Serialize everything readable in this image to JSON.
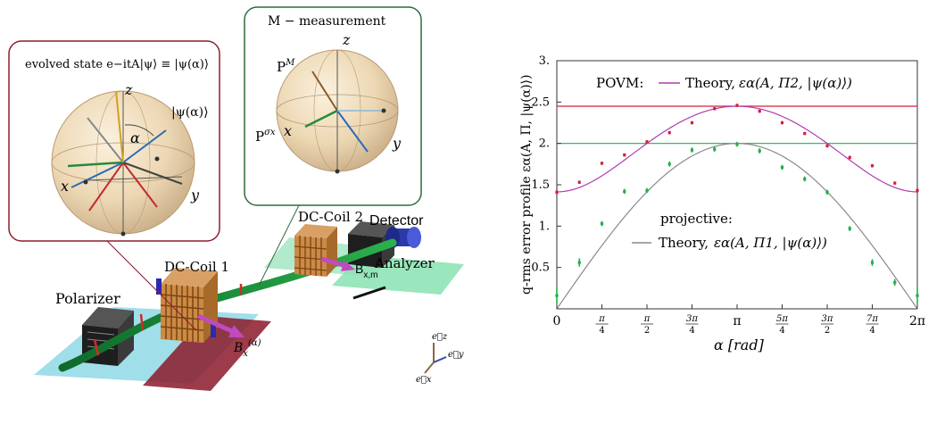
{
  "setup": {
    "inset_left_title": "evolved state e−itA|ψ⟩ ≡ |ψ(α)⟩",
    "inset_right_title": "M − measurement",
    "sphere_left": {
      "z": "z",
      "x": "x",
      "y": "y",
      "alpha": "α",
      "psi": "|ψ(α)⟩"
    },
    "sphere_right": {
      "z": "z",
      "x": "x",
      "y": "y",
      "pm": "P",
      "pm_sup": "M",
      "ps": "P",
      "ps_sup": "σx"
    },
    "polarizer": "Polarizer",
    "coil1": "DC-Coil 1",
    "coil2": "DC-Coil 2",
    "detector": "Detector",
    "analyzer": "Analyzer",
    "field1_main": "B",
    "field1_sub": "x",
    "field1_sup": "(α)",
    "field2_main": "B",
    "field2_sub": "x,m",
    "axis_ez": "e⃗z",
    "axis_ey": "e⃗y",
    "axis_ex": "e⃗x"
  },
  "colors": {
    "red_series": "#d81f3c",
    "green_series": "#1fb14a",
    "theory_pi2": "#b03bb0",
    "theory_pi1": "#8a8a8a",
    "inset_left_border": "#8b1f2e",
    "inset_right_border": "#2e6b3c"
  },
  "chart_data": {
    "type": "line",
    "xlabel": "α [rad]",
    "ylabel": "q-rms error profile εα(A, Π, |ψ(α)⟩)",
    "xlim": [
      0,
      6.2832
    ],
    "ylim": [
      0,
      3.0
    ],
    "x_tick_labels": [
      "0",
      "π/4",
      "π/2",
      "3π/4",
      "π",
      "5π/4",
      "3π/2",
      "7π/4",
      "2π"
    ],
    "y_tick_labels": [
      "0.5",
      "1.",
      "1.5",
      "2.",
      "2.5",
      "3."
    ],
    "y_ticks": [
      0.5,
      1.0,
      1.5,
      2.0,
      2.5,
      3.0
    ],
    "annotations": {
      "povm_label": "POVM:",
      "povm_theory": "Theory,",
      "povm_formula": "εα(A, Π2, |ψ(α)⟩)",
      "proj_label": "projective:",
      "proj_theory": "Theory,",
      "proj_formula": "εα(A, Π1, |ψ(α)⟩)"
    },
    "reference_lines": [
      {
        "name": "red limit",
        "y": 2.45
      },
      {
        "name": "green limit",
        "y": 2.0
      }
    ],
    "series": [
      {
        "name": "POVM theory",
        "kind": "curve",
        "formula": "sqrt(2 + 4 sin^2(alpha/2))",
        "samples": 120
      },
      {
        "name": "projective theory",
        "kind": "curve",
        "formula": "2 sin(alpha/2)",
        "samples": 120
      },
      {
        "name": "POVM data",
        "kind": "points",
        "x": [
          0,
          0.3927,
          0.7854,
          1.1781,
          1.5708,
          1.9635,
          2.3562,
          2.7489,
          3.1416,
          3.5343,
          3.927,
          4.3197,
          4.7124,
          5.1051,
          5.4978,
          5.8905,
          6.2832
        ],
        "y": [
          1.41,
          1.53,
          1.76,
          1.86,
          2.02,
          2.13,
          2.25,
          2.42,
          2.46,
          2.39,
          2.25,
          2.12,
          1.97,
          1.83,
          1.73,
          1.52,
          1.43
        ],
        "err": [
          0.03,
          0.02,
          0.02,
          0.02,
          0.02,
          0.02,
          0.02,
          0.02,
          0.02,
          0.02,
          0.02,
          0.02,
          0.02,
          0.02,
          0.02,
          0.02,
          0.03
        ]
      },
      {
        "name": "projective data",
        "kind": "points",
        "x": [
          0,
          0.3927,
          0.7854,
          1.1781,
          1.5708,
          1.9635,
          2.3562,
          2.7489,
          3.1416,
          3.5343,
          3.927,
          4.3197,
          4.7124,
          5.1051,
          5.4978,
          5.8905,
          6.2832
        ],
        "y": [
          0.16,
          0.56,
          1.03,
          1.42,
          1.43,
          1.75,
          1.92,
          1.93,
          1.99,
          1.91,
          1.71,
          1.57,
          1.41,
          0.97,
          0.56,
          0.32,
          0.16
        ],
        "err": [
          0.1,
          0.05,
          0.03,
          0.03,
          0.03,
          0.03,
          0.03,
          0.03,
          0.03,
          0.03,
          0.03,
          0.03,
          0.03,
          0.03,
          0.04,
          0.04,
          0.1
        ]
      }
    ],
    "grid": false
  }
}
